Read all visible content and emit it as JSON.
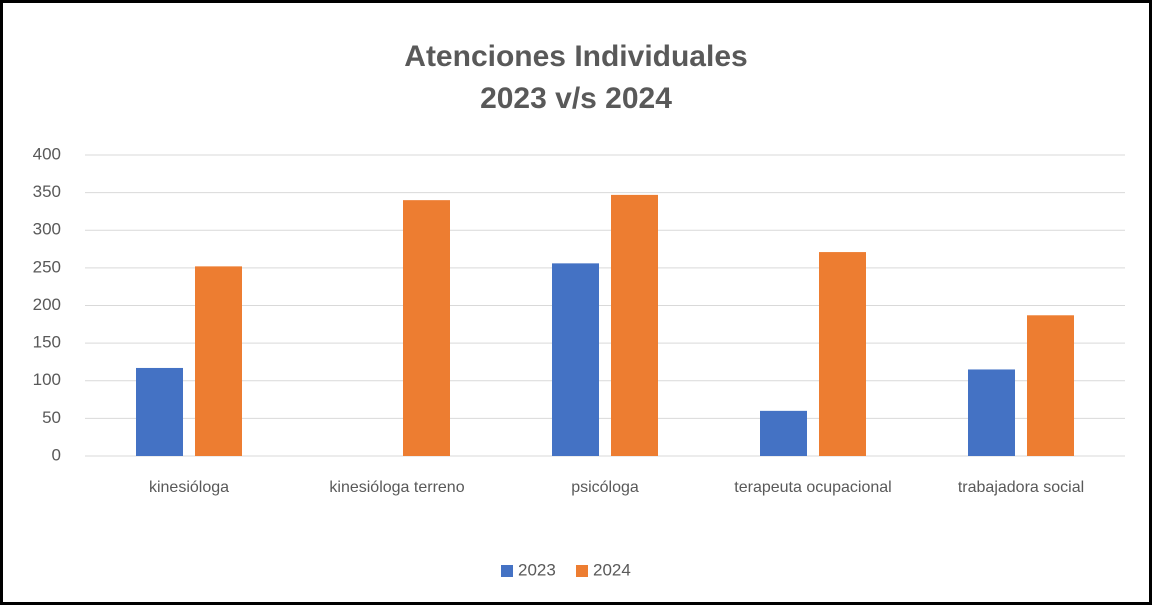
{
  "chart_data": {
    "type": "bar",
    "title": [
      "Atenciones Individuales",
      "2023 v/s 2024"
    ],
    "categories": [
      "kinesióloga",
      "kinesióloga terreno",
      "psicóloga",
      "terapeuta ocupacional",
      "trabajadora social"
    ],
    "series": [
      {
        "name": "2023",
        "color": "#4472c4",
        "values": [
          117,
          null,
          256,
          60,
          115
        ]
      },
      {
        "name": "2024",
        "color": "#ed7d31",
        "values": [
          252,
          340,
          347,
          271,
          187
        ]
      }
    ],
    "ylim": [
      0,
      400
    ],
    "yticks": [
      0,
      50,
      100,
      150,
      200,
      250,
      300,
      350,
      400
    ],
    "grid": true,
    "legend": "bottom"
  }
}
